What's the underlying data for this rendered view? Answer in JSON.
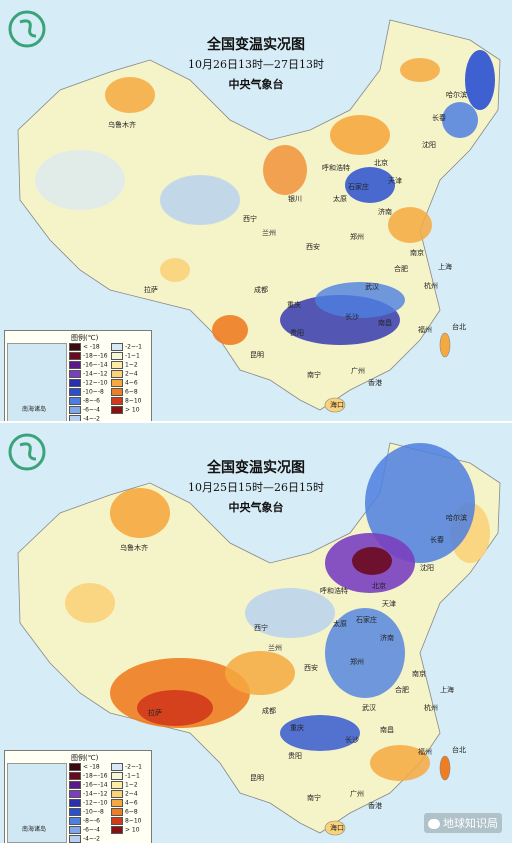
{
  "maps": [
    {
      "title": "全国变温实况图",
      "period": "10月26日13时—27日13时",
      "agency": "中央气象台",
      "cities": [
        "乌鲁木齐",
        "哈尔滨",
        "长春",
        "沈阳",
        "呼和浩特",
        "北京",
        "天津",
        "太原",
        "石家庄",
        "济南",
        "郑州",
        "西宁",
        "兰州",
        "西安",
        "银川",
        "拉萨",
        "成都",
        "重庆",
        "武汉",
        "合肥",
        "南京",
        "上海",
        "杭州",
        "长沙",
        "南昌",
        "福州",
        "台北",
        "贵阳",
        "昆明",
        "南宁",
        "广州",
        "香港",
        "海口"
      ]
    },
    {
      "title": "全国变温实况图",
      "period": "10月25日15时—26日15时",
      "agency": "中央气象台",
      "cities": [
        "乌鲁木齐",
        "哈尔滨",
        "长春",
        "沈阳",
        "呼和浩特",
        "北京",
        "天津",
        "太原",
        "石家庄",
        "济南",
        "郑州",
        "西宁",
        "兰州",
        "西安",
        "拉萨",
        "成都",
        "重庆",
        "武汉",
        "合肥",
        "南京",
        "上海",
        "杭州",
        "长沙",
        "南昌",
        "福州",
        "台北",
        "贵阳",
        "昆明",
        "南宁",
        "广州",
        "香港",
        "海口"
      ]
    }
  ],
  "legend": {
    "title": "图例(℃)",
    "items": [
      {
        "label": "< -18",
        "color": "#3a0a10"
      },
      {
        "label": "-18~-16",
        "color": "#6b0a1e"
      },
      {
        "label": "-16~-14",
        "color": "#5a1a8a"
      },
      {
        "label": "-14~-12",
        "color": "#7a3fbf"
      },
      {
        "label": "-12~-10",
        "color": "#2b2fae"
      },
      {
        "label": "-10~-8",
        "color": "#2a50d0"
      },
      {
        "label": "-8~-6",
        "color": "#4d7fe0"
      },
      {
        "label": "-6~-4",
        "color": "#7fa9ea"
      },
      {
        "label": "-4~-2",
        "color": "#b5d0f0"
      },
      {
        "label": "-2~-1",
        "color": "#d8e8f6"
      },
      {
        "label": "-1~1",
        "color": "#f6f7d8"
      },
      {
        "label": "1~2",
        "color": "#fbeaa8"
      },
      {
        "label": "2~4",
        "color": "#fbd27a"
      },
      {
        "label": "4~6",
        "color": "#f6a940"
      },
      {
        "label": "6~8",
        "color": "#ee7d24"
      },
      {
        "label": "8~10",
        "color": "#d13a1a"
      },
      {
        "label": "> 10",
        "color": "#8a1010"
      }
    ]
  },
  "inset_label": "南海诸岛",
  "watermark": "地球知识局"
}
